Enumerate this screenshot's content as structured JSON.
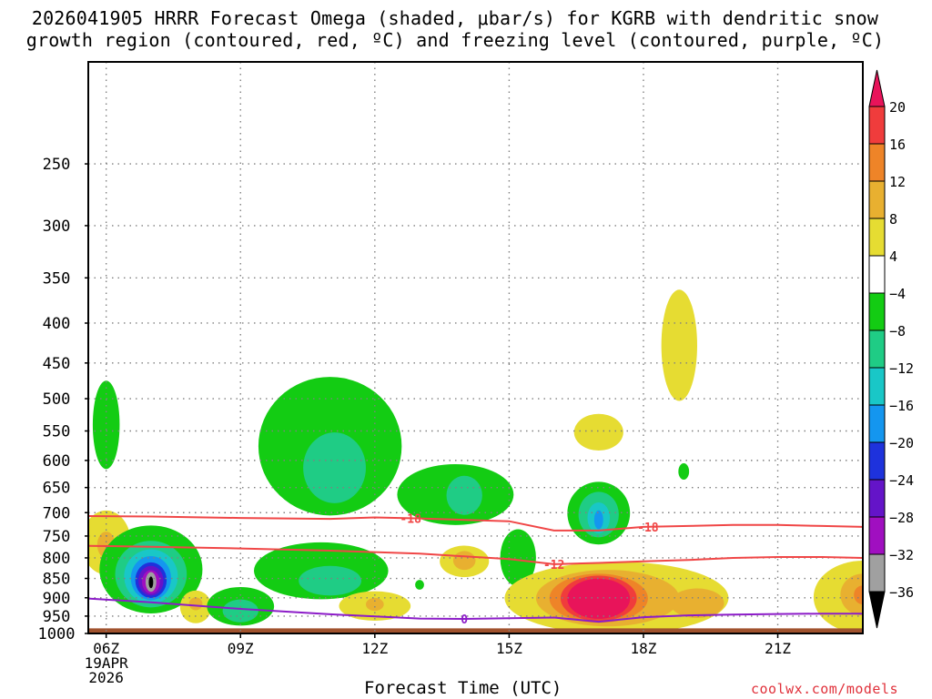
{
  "chart_data": {
    "type": "heatmap",
    "title": "2026041905 HRRR Forecast Omega (shaded, μbar/s) for KGRB with dendritic snow growth region (contoured, red, ºC) and freezing level (contoured, purple, ºC)",
    "xlabel": "Forecast Time (UTC)",
    "ylabel": "",
    "credit": "coolwx.com/models",
    "x_ticks": [
      "06Z",
      "09Z",
      "12Z",
      "15Z",
      "18Z",
      "21Z"
    ],
    "x_tick_hours": [
      6,
      9,
      12,
      15,
      18,
      21
    ],
    "x_date_line1": "19APR",
    "x_date_line2": "2026",
    "xlim": [
      5.6,
      22.9
    ],
    "y_ticks": [
      250,
      300,
      350,
      400,
      450,
      500,
      550,
      600,
      650,
      700,
      750,
      800,
      850,
      900,
      950,
      1000
    ],
    "y_tick_labels": [
      "250",
      "300",
      "350",
      "400",
      "450",
      "500",
      "550",
      "600",
      "650",
      "700",
      "750",
      "800",
      "850",
      "900",
      "950",
      "1000"
    ],
    "ylim": [
      1000,
      185
    ],
    "y_scale": "log-pressure (inverted)",
    "grid": true,
    "colorbar": {
      "ticks": [
        "20",
        "16",
        "12",
        "8",
        "4",
        "−4",
        "−8",
        "−12",
        "−16",
        "−20",
        "−24",
        "−28",
        "−32",
        "−36"
      ],
      "colors": [
        "#e8145a",
        "#f03c3c",
        "#ee8428",
        "#e8b030",
        "#e6dc32",
        "#ffffff",
        "#13cc13",
        "#1fcc85",
        "#19c7c7",
        "#1496ef",
        "#1e32dc",
        "#6414c8",
        "#a00fc0",
        "#a0a0a0",
        "#000000"
      ],
      "over_color": "#e8145a",
      "under_color": "#000000"
    },
    "contours": [
      {
        "name": "-18",
        "color": "#f04646",
        "label_hours": [
          12.8,
          18.1
        ],
        "points": [
          [
            5.6,
            707
          ],
          [
            7,
            708
          ],
          [
            9,
            711
          ],
          [
            11,
            713
          ],
          [
            12,
            710
          ],
          [
            13,
            712
          ],
          [
            15,
            718
          ],
          [
            16,
            738
          ],
          [
            17,
            738
          ],
          [
            18,
            730
          ],
          [
            19,
            728
          ],
          [
            20,
            726
          ],
          [
            21,
            726
          ],
          [
            22,
            728
          ],
          [
            22.9,
            730
          ]
        ]
      },
      {
        "name": "-12",
        "color": "#f04646",
        "label_hours": [
          16.0
        ],
        "points": [
          [
            5.6,
            772
          ],
          [
            7,
            774
          ],
          [
            9,
            778
          ],
          [
            11,
            783
          ],
          [
            13,
            790
          ],
          [
            15,
            803
          ],
          [
            16,
            815
          ],
          [
            17,
            812
          ],
          [
            18,
            808
          ],
          [
            19,
            805
          ],
          [
            20,
            800
          ],
          [
            21,
            798
          ],
          [
            22,
            798
          ],
          [
            22.9,
            800
          ]
        ]
      },
      {
        "name": "0",
        "color": "#8c1cc8",
        "label_hours": [
          14.0
        ],
        "points": [
          [
            5.6,
            902
          ],
          [
            7,
            912
          ],
          [
            9,
            930
          ],
          [
            11,
            945
          ],
          [
            13,
            957
          ],
          [
            14,
            958
          ],
          [
            15,
            956
          ],
          [
            16,
            954
          ],
          [
            17,
            966
          ],
          [
            18,
            953
          ],
          [
            19,
            948
          ],
          [
            20,
            946
          ],
          [
            21,
            944
          ],
          [
            22,
            943
          ],
          [
            22.9,
            943
          ]
        ]
      }
    ],
    "shaded_regions": [
      {
        "color": "#13cc13",
        "center": [
          6.0,
          545
        ],
        "radius_hours": 0.3,
        "pressure_range": [
          470,
          610
        ]
      },
      {
        "color": "#e6dc32",
        "center": [
          6.0,
          765
        ],
        "radius_hours": 0.55,
        "pressure_range": [
          695,
          840
        ]
      },
      {
        "color": "#e8b030",
        "center": [
          6.0,
          770
        ],
        "radius_hours": 0.2,
        "pressure_range": [
          740,
          800
        ]
      },
      {
        "color": "#13cc13",
        "center": [
          7.0,
          830
        ],
        "radius_hours": 1.15,
        "pressure_range": [
          725,
          940
        ]
      },
      {
        "color": "#1fcc85",
        "center": [
          7.0,
          840
        ],
        "radius_hours": 0.8,
        "pressure_range": [
          760,
          925
        ]
      },
      {
        "color": "#19c7c7",
        "center": [
          7.0,
          845
        ],
        "radius_hours": 0.6,
        "pressure_range": [
          780,
          915
        ]
      },
      {
        "color": "#1496ef",
        "center": [
          7.0,
          850
        ],
        "radius_hours": 0.45,
        "pressure_range": [
          795,
          905
        ]
      },
      {
        "color": "#1e32dc",
        "center": [
          7.0,
          855
        ],
        "radius_hours": 0.35,
        "pressure_range": [
          810,
          900
        ]
      },
      {
        "color": "#6414c8",
        "center": [
          7.0,
          855
        ],
        "radius_hours": 0.28,
        "pressure_range": [
          820,
          895
        ]
      },
      {
        "color": "#a00fc0",
        "center": [
          7.0,
          858
        ],
        "radius_hours": 0.2,
        "pressure_range": [
          830,
          890
        ]
      },
      {
        "color": "#a0a0a0",
        "center": [
          7.0,
          858
        ],
        "radius_hours": 0.12,
        "pressure_range": [
          835,
          885
        ]
      },
      {
        "color": "#000000",
        "center": [
          7.0,
          860
        ],
        "radius_hours": 0.05,
        "pressure_range": [
          845,
          875
        ]
      },
      {
        "color": "#e6dc32",
        "center": [
          8.0,
          920
        ],
        "radius_hours": 0.35,
        "pressure_range": [
          885,
          975
        ]
      },
      {
        "color": "#e8b030",
        "center": [
          8.0,
          915
        ],
        "radius_hours": 0.15,
        "pressure_range": [
          900,
          935
        ]
      },
      {
        "color": "#13cc13",
        "center": [
          9.0,
          925
        ],
        "radius_hours": 0.75,
        "pressure_range": [
          870,
          975
        ]
      },
      {
        "color": "#1fcc85",
        "center": [
          9.0,
          935
        ],
        "radius_hours": 0.4,
        "pressure_range": [
          905,
          968
        ]
      },
      {
        "color": "#13cc13",
        "center": [
          11.0,
          580
        ],
        "radius_hours": 1.6,
        "pressure_range": [
          465,
          700
        ]
      },
      {
        "color": "#1fcc85",
        "center": [
          11.1,
          605
        ],
        "radius_hours": 0.7,
        "pressure_range": [
          560,
          690
        ]
      },
      {
        "color": "#13cc13",
        "center": [
          10.8,
          830
        ],
        "radius_hours": 1.5,
        "pressure_range": [
          765,
          905
        ]
      },
      {
        "color": "#1fcc85",
        "center": [
          11.0,
          855
        ],
        "radius_hours": 0.7,
        "pressure_range": [
          820,
          895
        ]
      },
      {
        "color": "#e6dc32",
        "center": [
          12.0,
          925
        ],
        "radius_hours": 0.8,
        "pressure_range": [
          880,
          960
        ]
      },
      {
        "color": "#e8b030",
        "center": [
          12.0,
          918
        ],
        "radius_hours": 0.2,
        "pressure_range": [
          900,
          935
        ]
      },
      {
        "color": "#13cc13",
        "center": [
          13.0,
          865
        ],
        "radius_hours": 0.1,
        "pressure_range": [
          855,
          880
        ]
      },
      {
        "color": "#13cc13",
        "center": [
          13.8,
          660
        ],
        "radius_hours": 1.3,
        "pressure_range": [
          610,
          730
        ]
      },
      {
        "color": "#1fcc85",
        "center": [
          14.0,
          665
        ],
        "radius_hours": 0.4,
        "pressure_range": [
          628,
          705
        ]
      },
      {
        "color": "#e6dc32",
        "center": [
          14.0,
          810
        ],
        "radius_hours": 0.55,
        "pressure_range": [
          770,
          845
        ]
      },
      {
        "color": "#e8b030",
        "center": [
          14.0,
          805
        ],
        "radius_hours": 0.25,
        "pressure_range": [
          785,
          830
        ]
      },
      {
        "color": "#13cc13",
        "center": [
          15.2,
          800
        ],
        "radius_hours": 0.4,
        "pressure_range": [
          735,
          870
        ]
      },
      {
        "color": "#e6dc32",
        "center": [
          17.0,
          550
        ],
        "radius_hours": 0.55,
        "pressure_range": [
          525,
          585
        ]
      },
      {
        "color": "#e6dc32",
        "center": [
          18.8,
          430
        ],
        "radius_hours": 0.4,
        "pressure_range": [
          360,
          500
        ]
      },
      {
        "color": "#13cc13",
        "center": [
          18.9,
          620
        ],
        "radius_hours": 0.12,
        "pressure_range": [
          605,
          635
        ]
      },
      {
        "color": "#13cc13",
        "center": [
          17.0,
          700
        ],
        "radius_hours": 0.7,
        "pressure_range": [
          640,
          770
        ]
      },
      {
        "color": "#1fcc85",
        "center": [
          17.0,
          702
        ],
        "radius_hours": 0.45,
        "pressure_range": [
          660,
          755
        ]
      },
      {
        "color": "#19c7c7",
        "center": [
          17.0,
          710
        ],
        "radius_hours": 0.25,
        "pressure_range": [
          680,
          745
        ]
      },
      {
        "color": "#1496ef",
        "center": [
          17.0,
          715
        ],
        "radius_hours": 0.1,
        "pressure_range": [
          695,
          735
        ]
      },
      {
        "color": "#e6dc32",
        "center": [
          17.4,
          905
        ],
        "radius_hours": 2.5,
        "pressure_range": [
          805,
          998
        ]
      },
      {
        "color": "#e8b030",
        "center": [
          17.2,
          905
        ],
        "radius_hours": 1.6,
        "pressure_range": [
          825,
          975
        ]
      },
      {
        "color": "#ee8428",
        "center": [
          17.0,
          905
        ],
        "radius_hours": 1.1,
        "pressure_range": [
          835,
          965
        ]
      },
      {
        "color": "#f03c3c",
        "center": [
          17.0,
          905
        ],
        "radius_hours": 0.85,
        "pressure_range": [
          840,
          960
        ]
      },
      {
        "color": "#e8145a",
        "center": [
          17.0,
          905
        ],
        "radius_hours": 0.7,
        "pressure_range": [
          848,
          955
        ]
      },
      {
        "color": "#e8b030",
        "center": [
          19.2,
          915
        ],
        "radius_hours": 0.6,
        "pressure_range": [
          875,
          955
        ]
      },
      {
        "color": "#e6dc32",
        "center": [
          22.9,
          900
        ],
        "radius_hours": 1.1,
        "pressure_range": [
          805,
          998
        ]
      },
      {
        "color": "#e8b030",
        "center": [
          22.9,
          890
        ],
        "radius_hours": 0.5,
        "pressure_range": [
          840,
          950
        ]
      },
      {
        "color": "#ee8428",
        "center": [
          22.9,
          890
        ],
        "radius_hours": 0.2,
        "pressure_range": [
          870,
          920
        ]
      }
    ],
    "terrain": {
      "color": "#a0522d",
      "pressure_range": [
        985,
        1000
      ]
    }
  }
}
